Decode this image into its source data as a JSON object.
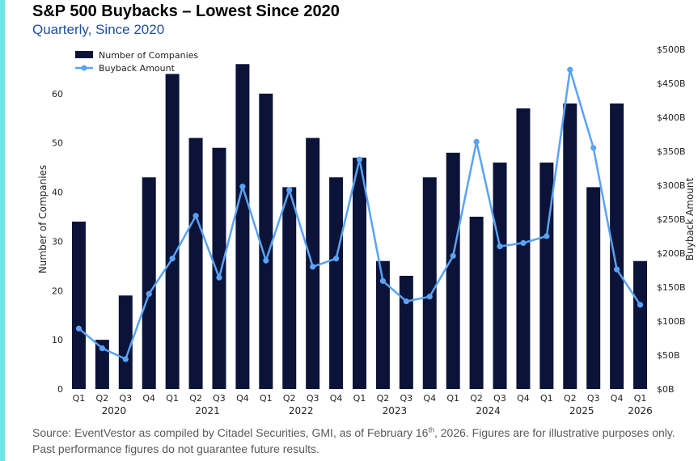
{
  "header": {
    "title": "S&P 500 Buybacks – Lowest Since 2020",
    "subtitle": "Quarterly, Since 2020"
  },
  "footer": {
    "source_main": "Source: EventVestor as compiled by Citadel Securities, GMI, as of February 16",
    "source_sup": "th",
    "source_rest": ", 2026. Figures are for illustrative purposes only. Past performance figures do not guarantee future results."
  },
  "colors": {
    "bar": "#0b1438",
    "line": "#5aa2f5",
    "accent": "#6de3e3"
  },
  "chart_data": {
    "type": "bar",
    "title": "S&P 500 Buybacks – Lowest Since 2020",
    "categories": [
      "Q1",
      "Q2",
      "Q3",
      "Q4",
      "Q1",
      "Q2",
      "Q3",
      "Q4",
      "Q1",
      "Q2",
      "Q3",
      "Q4",
      "Q1",
      "Q2",
      "Q3",
      "Q4",
      "Q1",
      "Q2",
      "Q3",
      "Q4",
      "Q1",
      "Q2",
      "Q3",
      "Q4",
      "Q1"
    ],
    "year_labels": [
      "2020",
      "2021",
      "2022",
      "2023",
      "2024",
      "2025",
      "2026"
    ],
    "year_start_index": [
      0,
      4,
      8,
      12,
      16,
      20,
      24
    ],
    "series": [
      {
        "name": "Number of Companies",
        "kind": "bar",
        "axis": "left",
        "values": [
          34,
          10,
          19,
          43,
          64,
          51,
          49,
          66,
          60,
          41,
          51,
          43,
          47,
          26,
          23,
          43,
          48,
          35,
          46,
          57,
          46,
          58,
          41,
          58,
          26
        ]
      },
      {
        "name": "Buyback Amount",
        "kind": "line",
        "axis": "right",
        "values": [
          89,
          60,
          44,
          140,
          192,
          255,
          164,
          298,
          189,
          293,
          180,
          192,
          338,
          159,
          129,
          136,
          196,
          364,
          210,
          215,
          225,
          470,
          355,
          176,
          124
        ]
      }
    ],
    "ylabel": "Number of Companies",
    "ylim": [
      0,
      69
    ],
    "yticks": [
      0,
      10,
      20,
      30,
      40,
      50,
      60
    ],
    "y2label": "Buyback Amount",
    "y2lim": [
      0,
      500
    ],
    "y2ticks": [
      0,
      50,
      100,
      150,
      200,
      250,
      300,
      350,
      400,
      450,
      500
    ],
    "y2tick_labels": [
      "$0B",
      "$50B",
      "$100B",
      "$150B",
      "$200B",
      "$250B",
      "$300B",
      "$350B",
      "$400B",
      "$450B",
      "$500B"
    ],
    "legend": {
      "position": "top-left",
      "entries": [
        "Number of Companies",
        "Buyback Amount"
      ]
    }
  }
}
